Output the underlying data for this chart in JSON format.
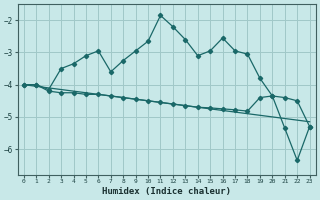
{
  "xlabel": "Humidex (Indice chaleur)",
  "background_color": "#c8e8e8",
  "grid_color": "#a0c8c8",
  "line_color": "#1a6868",
  "xlim": [
    -0.5,
    23.5
  ],
  "ylim": [
    -6.8,
    -1.5
  ],
  "yticks": [
    -6,
    -5,
    -4,
    -3,
    -2
  ],
  "xticks": [
    0,
    1,
    2,
    3,
    4,
    5,
    6,
    7,
    8,
    9,
    10,
    11,
    12,
    13,
    14,
    15,
    16,
    17,
    18,
    19,
    20,
    21,
    22,
    23
  ],
  "series1_x": [
    0,
    1,
    2,
    3,
    4,
    5,
    6,
    7,
    8,
    9,
    10,
    11,
    12,
    13,
    14,
    15,
    16,
    17,
    18,
    19,
    20,
    21,
    22,
    23
  ],
  "series1_y": [
    -4.0,
    -4.0,
    -4.15,
    -3.5,
    -3.35,
    -3.1,
    -2.95,
    -3.6,
    -3.25,
    -2.95,
    -2.65,
    -1.85,
    -2.2,
    -2.6,
    -3.1,
    -2.95,
    -2.55,
    -2.95,
    -3.05,
    -3.8,
    -4.35,
    -5.35,
    -6.35,
    -5.3
  ],
  "series2_x": [
    0,
    1,
    2,
    3,
    4,
    5,
    6,
    7,
    8,
    9,
    10,
    11,
    12,
    13,
    14,
    15,
    16,
    17,
    18,
    19,
    20,
    21,
    22,
    23
  ],
  "series2_y": [
    -4.0,
    -4.05,
    -4.1,
    -4.15,
    -4.2,
    -4.25,
    -4.3,
    -4.35,
    -4.4,
    -4.45,
    -4.5,
    -4.55,
    -4.6,
    -4.65,
    -4.7,
    -4.75,
    -4.8,
    -4.85,
    -4.9,
    -4.95,
    -5.0,
    -5.05,
    -5.1,
    -5.15
  ],
  "series3_x": [
    0,
    1,
    2,
    3,
    4,
    5,
    6,
    7,
    8,
    9,
    10,
    11,
    12,
    13,
    14,
    15,
    16,
    17,
    18,
    19,
    20,
    21,
    22,
    23
  ],
  "series3_y": [
    -4.0,
    -4.0,
    -4.2,
    -4.25,
    -4.25,
    -4.3,
    -4.3,
    -4.35,
    -4.4,
    -4.45,
    -4.5,
    -4.55,
    -4.6,
    -4.65,
    -4.7,
    -4.72,
    -4.75,
    -4.78,
    -4.82,
    -4.4,
    -4.35,
    -4.4,
    -4.5,
    -5.3
  ]
}
